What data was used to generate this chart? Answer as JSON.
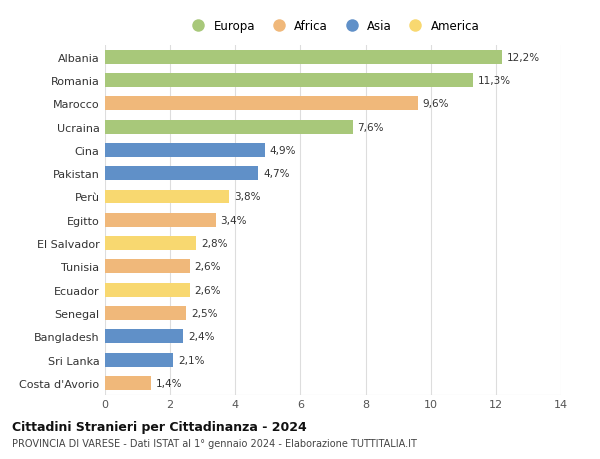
{
  "countries": [
    "Albania",
    "Romania",
    "Marocco",
    "Ucraina",
    "Cina",
    "Pakistan",
    "Perù",
    "Egitto",
    "El Salvador",
    "Tunisia",
    "Ecuador",
    "Senegal",
    "Bangladesh",
    "Sri Lanka",
    "Costa d'Avorio"
  ],
  "values": [
    12.2,
    11.3,
    9.6,
    7.6,
    4.9,
    4.7,
    3.8,
    3.4,
    2.8,
    2.6,
    2.6,
    2.5,
    2.4,
    2.1,
    1.4
  ],
  "continents": [
    "Europa",
    "Europa",
    "Africa",
    "Europa",
    "Asia",
    "Asia",
    "America",
    "Africa",
    "America",
    "Africa",
    "America",
    "Africa",
    "Asia",
    "Asia",
    "Africa"
  ],
  "colors": {
    "Europa": "#a8c87a",
    "Africa": "#f0b87a",
    "Asia": "#6090c8",
    "America": "#f8d870"
  },
  "legend_order": [
    "Europa",
    "Africa",
    "Asia",
    "America"
  ],
  "xlim": [
    0,
    14
  ],
  "xticks": [
    0,
    2,
    4,
    6,
    8,
    10,
    12,
    14
  ],
  "title_line1": "Cittadini Stranieri per Cittadinanza - 2024",
  "title_line2": "PROVINCIA DI VARESE - Dati ISTAT al 1° gennaio 2024 - Elaborazione TUTTITALIA.IT",
  "bg_color": "#ffffff",
  "grid_color": "#dddddd",
  "bar_height": 0.6
}
